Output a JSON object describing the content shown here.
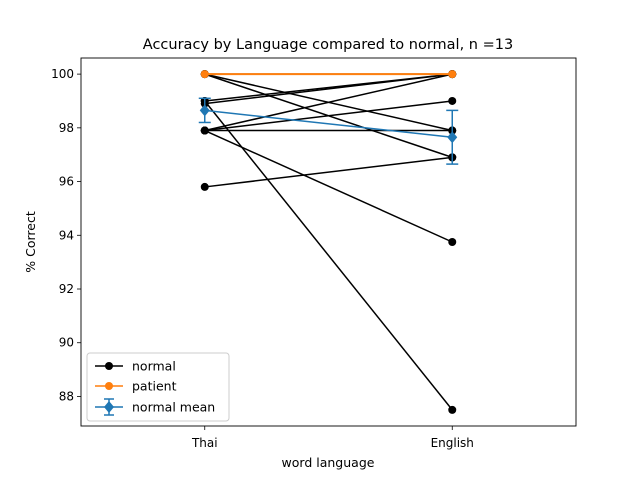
{
  "chart_data": {
    "type": "line",
    "title": "Accuracy by Language compared to normal, n =13",
    "xlabel": "word language",
    "ylabel": "% Correct",
    "categories": [
      "Thai",
      "English"
    ],
    "ylim": [
      86.9,
      100.6
    ],
    "xlim": [
      -0.5,
      1.5
    ],
    "yticks": [
      88,
      90,
      92,
      94,
      96,
      98,
      100
    ],
    "grid": false,
    "legend_position": "lower-left",
    "colors": {
      "normal": "#000000",
      "patient": "#ff7f0e",
      "mean": "#1f77b4"
    },
    "series": [
      {
        "name": "normal",
        "lines": [
          [
            100.0,
            100.0
          ],
          [
            100.0,
            97.9
          ],
          [
            100.0,
            96.9
          ],
          [
            99.0,
            100.0
          ],
          [
            99.0,
            87.5
          ],
          [
            98.9,
            100.0
          ],
          [
            97.9,
            99.0
          ],
          [
            97.9,
            97.9
          ],
          [
            97.9,
            100.0
          ],
          [
            97.9,
            93.75
          ],
          [
            95.8,
            96.9
          ]
        ]
      },
      {
        "name": "patient",
        "values": [
          100.0,
          100.0
        ]
      },
      {
        "name": "normal mean",
        "values": [
          98.65,
          97.65
        ],
        "errors": [
          0.45,
          1.0
        ]
      }
    ]
  }
}
